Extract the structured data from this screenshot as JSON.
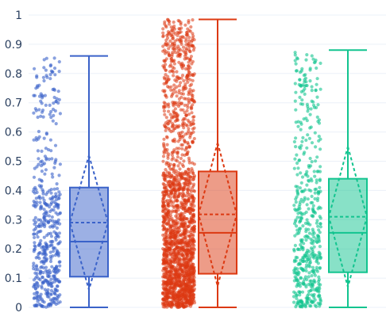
{
  "chart_data": {
    "type": "box",
    "y_ticks": [
      "0",
      "0.1",
      "0.2",
      "0.3",
      "0.4",
      "0.5",
      "0.6",
      "0.7",
      "0.8",
      "0.9",
      "1"
    ],
    "ylim": [
      0,
      1
    ],
    "grid": true,
    "legend": "none",
    "boxpoints": "all",
    "boxmean": "sd",
    "series": [
      {
        "color": "#3a62c9",
        "point_count": 500,
        "min": 0.0,
        "q1": 0.105,
        "median": 0.225,
        "q3": 0.41,
        "max": 0.86,
        "mean": 0.29,
        "sd": 0.23
      },
      {
        "color": "#dc3912",
        "point_count": 2000,
        "min": 0.0,
        "q1": 0.115,
        "median": 0.255,
        "q3": 0.465,
        "max": 0.985,
        "mean": 0.318,
        "sd": 0.245
      },
      {
        "color": "#12c48f",
        "point_count": 500,
        "min": 0.0,
        "q1": 0.12,
        "median": 0.255,
        "q3": 0.44,
        "max": 0.88,
        "mean": 0.31,
        "sd": 0.24
      }
    ]
  }
}
